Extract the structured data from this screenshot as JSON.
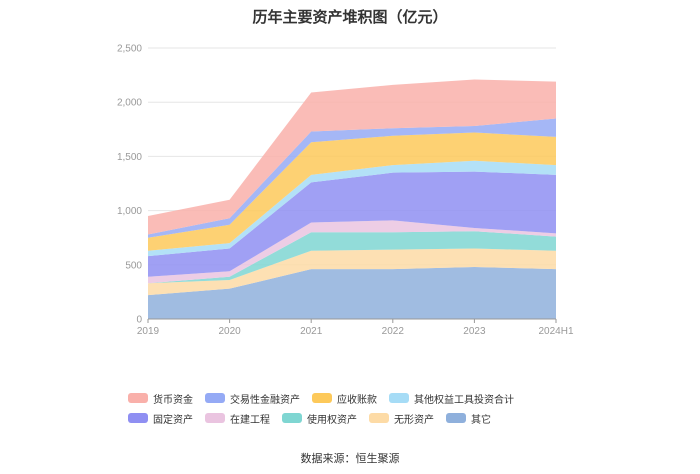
{
  "chart_data": {
    "type": "area",
    "title": "历年主要资产堆积图（亿元）",
    "xlabel": "",
    "ylabel": "",
    "ylim": [
      0,
      2500
    ],
    "yticks": [
      0,
      500,
      1000,
      1500,
      2000,
      2500
    ],
    "ytick_labels": [
      "0",
      "500",
      "1,000",
      "1,500",
      "2,000",
      "2,500"
    ],
    "categories": [
      "2019",
      "2020",
      "2021",
      "2022",
      "2023",
      "2024H1"
    ],
    "legend_position": "bottom",
    "series": [
      {
        "name": "其它",
        "color": "#8fb0dc",
        "values": [
          220,
          280,
          460,
          460,
          480,
          460
        ]
      },
      {
        "name": "无形资产",
        "color": "#fddba6",
        "values": [
          110,
          80,
          170,
          180,
          170,
          170
        ]
      },
      {
        "name": "使用权资产",
        "color": "#7fd6d2",
        "values": [
          0,
          30,
          170,
          160,
          160,
          130
        ]
      },
      {
        "name": "在建工程",
        "color": "#eac4e0",
        "values": [
          60,
          50,
          90,
          110,
          30,
          30
        ]
      },
      {
        "name": "固定资产",
        "color": "#8f8ff2",
        "values": [
          190,
          210,
          370,
          440,
          520,
          540
        ]
      },
      {
        "name": "其他权益工具投资合计",
        "color": "#a6dcf6",
        "values": [
          50,
          50,
          70,
          70,
          100,
          90
        ]
      },
      {
        "name": "应收账款",
        "color": "#fdc95a",
        "values": [
          120,
          170,
          300,
          270,
          260,
          260
        ]
      },
      {
        "name": "交易性金融资产",
        "color": "#95aaf5",
        "values": [
          30,
          60,
          100,
          70,
          60,
          170
        ]
      },
      {
        "name": "货币资金",
        "color": "#f9b0aa",
        "values": [
          170,
          170,
          360,
          400,
          430,
          340
        ]
      }
    ],
    "legend_order": [
      "货币资金",
      "交易性金融资产",
      "应收账款",
      "其他权益工具投资合计",
      "固定资产",
      "在建工程",
      "使用权资产",
      "无形资产",
      "其它"
    ]
  },
  "source": "数据来源：恒生聚源"
}
